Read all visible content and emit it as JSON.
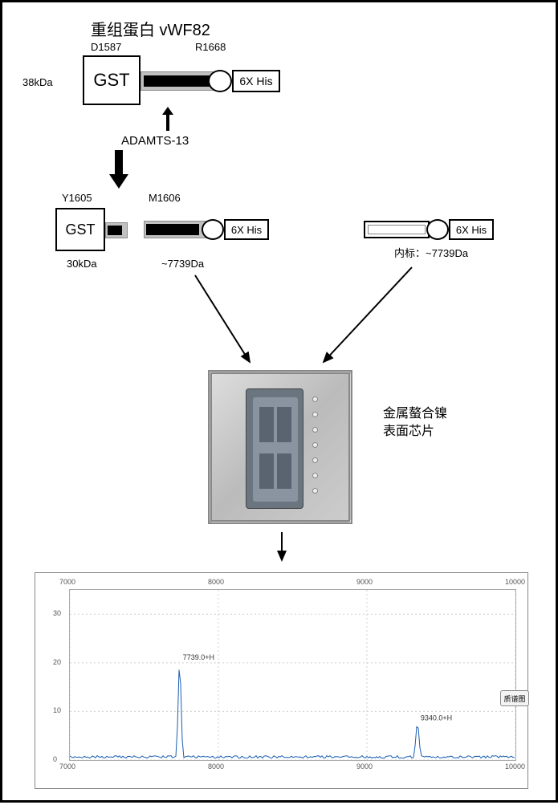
{
  "title": "重组蛋白 vWF82",
  "top": {
    "size_left": "38kDa",
    "residue_left": "D1587",
    "residue_right": "R1668",
    "gst": "GST",
    "his": "6X His",
    "enzyme": "ADAMTS-13"
  },
  "cleaved": {
    "residue_left": "Y1605",
    "residue_right": "M1606",
    "gst": "GST",
    "his": "6X His",
    "size_gst": "30kDa",
    "size_frag": "~7739Da"
  },
  "standard": {
    "his": "6X His",
    "label": "内标：~7739Da"
  },
  "chip_label1": "金属螯合镍",
  "chip_label2": "表面芯片",
  "spectrum": {
    "x_ticks": [
      "7000",
      "8000",
      "9000",
      "10000"
    ],
    "y_ticks": [
      "0",
      "10",
      "20",
      "30"
    ],
    "peak1_label": "7739.0+H",
    "peak2_label": "9340.0+H",
    "btn": "质谱图",
    "colors": {
      "line": "#1a5fb4",
      "grid": "#d0d0d0",
      "axis": "#888",
      "text": "#555"
    },
    "peak1_x": 7739,
    "peak1_y": 20,
    "peak2_x": 9340,
    "peak2_y": 7.5,
    "xmin": 7000,
    "xmax": 10000,
    "ymax": 35
  }
}
